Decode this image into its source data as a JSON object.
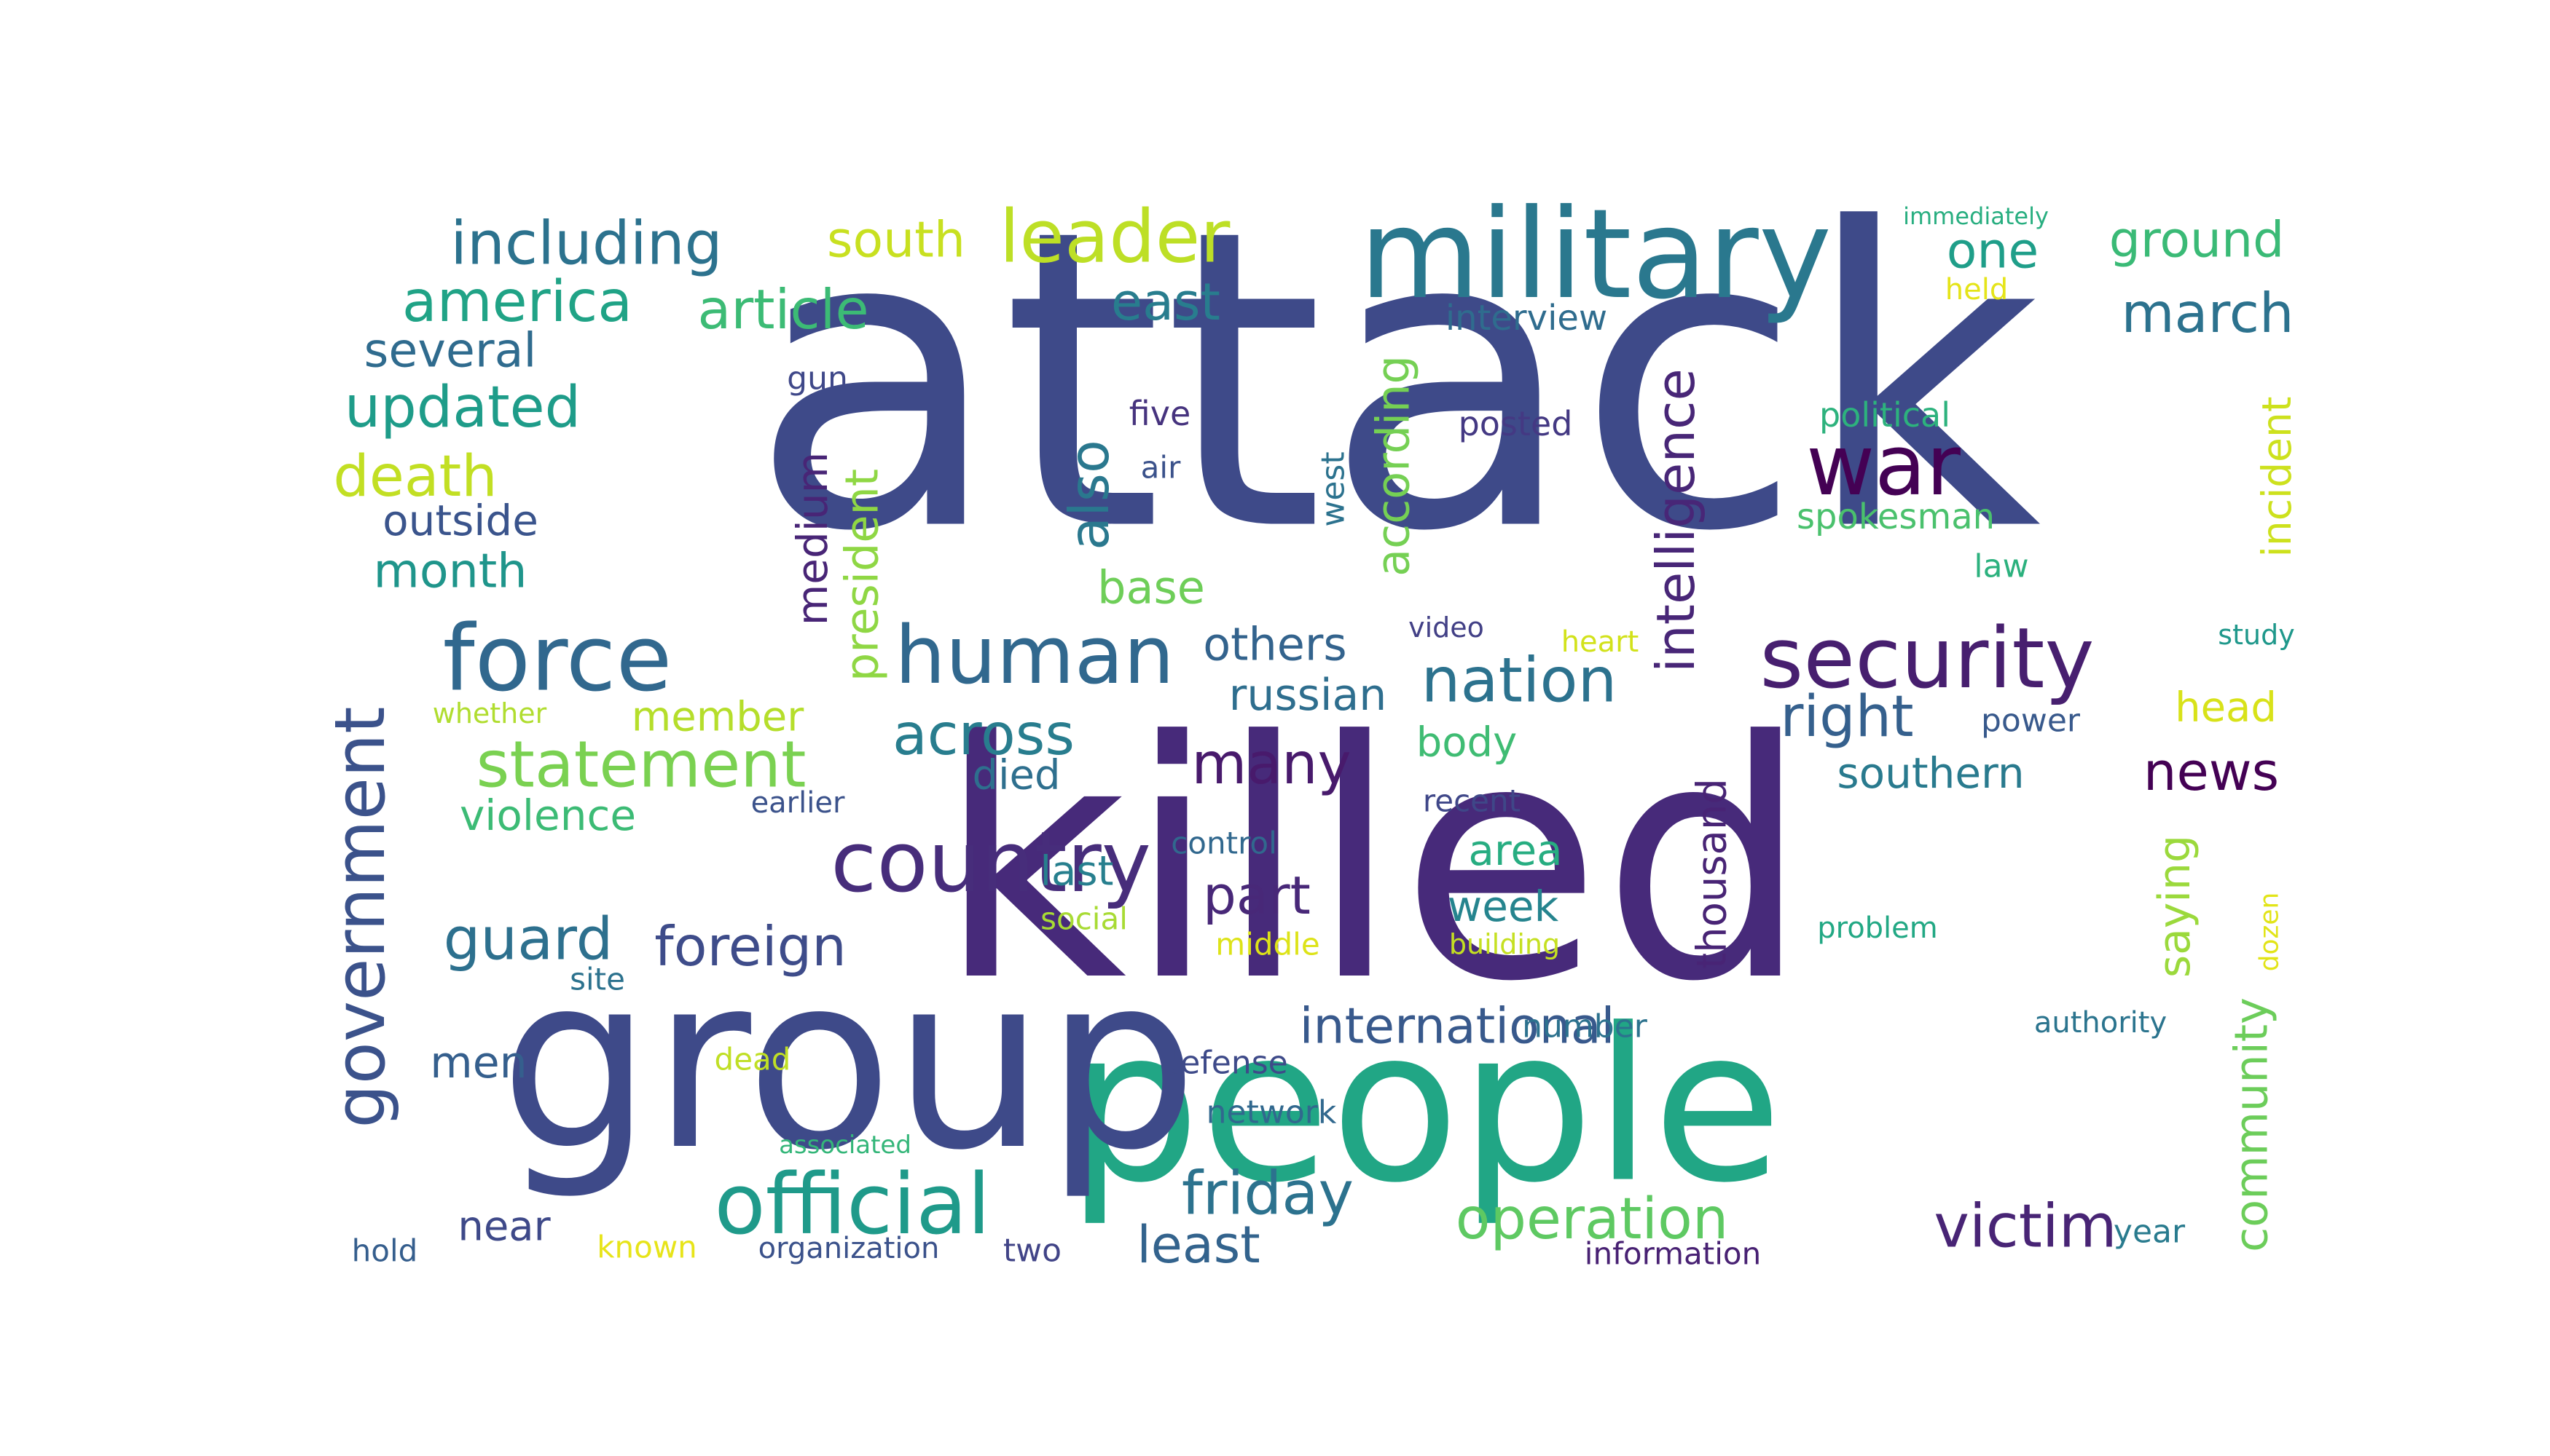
{
  "words": [
    {
      "text": "attack",
      "color": "#3e4a89",
      "rot": 0
    },
    {
      "text": "killed",
      "color": "#472a7a",
      "rot": 0
    },
    {
      "text": "people",
      "color": "#21a685",
      "rot": 0
    },
    {
      "text": "group",
      "color": "#3e4a89",
      "rot": 0
    },
    {
      "text": "military",
      "color": "#2a788e",
      "rot": 0
    },
    {
      "text": "security",
      "color": "#471f6f",
      "rot": 0
    },
    {
      "text": "force",
      "color": "#31688e",
      "rot": 0
    },
    {
      "text": "government",
      "color": "#3b528b",
      "rot": -90
    },
    {
      "text": "country",
      "color": "#472d7b",
      "rot": 0
    },
    {
      "text": "human",
      "color": "#31688e",
      "rot": 0
    },
    {
      "text": "official",
      "color": "#1f9a8a",
      "rot": 0
    },
    {
      "text": "leader",
      "color": "#bddf26",
      "rot": 0
    },
    {
      "text": "war",
      "color": "#440154",
      "rot": 0
    },
    {
      "text": "nation",
      "color": "#2c728e",
      "rot": 0
    },
    {
      "text": "intelligence",
      "color": "#482677",
      "rot": -90
    },
    {
      "text": "including",
      "color": "#2c728e",
      "rot": 0
    },
    {
      "text": "statement",
      "color": "#7ad151",
      "rot": 0
    },
    {
      "text": "america",
      "color": "#20a386",
      "rot": 0
    },
    {
      "text": "updated",
      "color": "#1e9c89",
      "rot": 0
    },
    {
      "text": "article",
      "color": "#3cbb75",
      "rot": 0
    },
    {
      "text": "operation",
      "color": "#5ec962",
      "rot": 0
    },
    {
      "text": "victim",
      "color": "#482475",
      "rot": 0
    },
    {
      "text": "friday",
      "color": "#2c728e",
      "rot": 0
    },
    {
      "text": "across",
      "color": "#287d8e",
      "rot": 0
    },
    {
      "text": "right",
      "color": "#35608d",
      "rot": 0
    },
    {
      "text": "guard",
      "color": "#2d708e",
      "rot": 0
    },
    {
      "text": "foreign",
      "color": "#3e4c8a",
      "rot": 0
    },
    {
      "text": "many",
      "color": "#481a6c",
      "rot": 0
    },
    {
      "text": "also",
      "color": "#2a788e",
      "rot": -90
    },
    {
      "text": "death",
      "color": "#c2df23",
      "rot": 0
    },
    {
      "text": "march",
      "color": "#2c728e",
      "rot": 0
    },
    {
      "text": "international",
      "color": "#38598c",
      "rot": 0
    },
    {
      "text": "community",
      "color": "#6ccd5a",
      "rot": -90
    },
    {
      "text": "news",
      "color": "#440154",
      "rot": 0
    },
    {
      "text": "south",
      "color": "#c8e020",
      "rot": 0
    },
    {
      "text": "east",
      "color": "#287d8e",
      "rot": 0
    },
    {
      "text": "ground",
      "color": "#3aba76",
      "rot": 0
    },
    {
      "text": "one",
      "color": "#1f9e89",
      "rot": 0
    },
    {
      "text": "part",
      "color": "#482878",
      "rot": 0
    },
    {
      "text": "least",
      "color": "#33638d",
      "rot": 0
    },
    {
      "text": "several",
      "color": "#2f6b8e",
      "rot": 0
    },
    {
      "text": "outside",
      "color": "#3a548c",
      "rot": 0
    },
    {
      "text": "month",
      "color": "#1f958b",
      "rot": 0
    },
    {
      "text": "according",
      "color": "#75d054",
      "rot": -90
    },
    {
      "text": "president",
      "color": "#8fd744",
      "rot": -90
    },
    {
      "text": "medium",
      "color": "#482576",
      "rot": -90
    },
    {
      "text": "thousand",
      "color": "#482475",
      "rot": -90
    },
    {
      "text": "incident",
      "color": "#cde11d",
      "rot": -90
    },
    {
      "text": "saying",
      "color": "#9bd93c",
      "rot": -90
    },
    {
      "text": "others",
      "color": "#33638d",
      "rot": 0
    },
    {
      "text": "russian",
      "color": "#2e6e8e",
      "rot": 0
    },
    {
      "text": "southern",
      "color": "#297a8e",
      "rot": 0
    },
    {
      "text": "base",
      "color": "#6ece58",
      "rot": 0
    },
    {
      "text": "member",
      "color": "#b5de2b",
      "rot": 0
    },
    {
      "text": "violence",
      "color": "#3cbb75",
      "rot": 0
    },
    {
      "text": "died",
      "color": "#2e6f8e",
      "rot": 0
    },
    {
      "text": "last",
      "color": "#277f8e",
      "rot": 0
    },
    {
      "text": "area",
      "color": "#27ad81",
      "rot": 0
    },
    {
      "text": "week",
      "color": "#25848e",
      "rot": 0
    },
    {
      "text": "body",
      "color": "#3fbc73",
      "rot": 0
    },
    {
      "text": "head",
      "color": "#d8e219",
      "rot": 0
    },
    {
      "text": "men",
      "color": "#355f8d",
      "rot": 0
    },
    {
      "text": "near",
      "color": "#3e4989",
      "rot": 0
    },
    {
      "text": "interview",
      "color": "#2f6c8e",
      "rot": 0
    },
    {
      "text": "political",
      "color": "#2db27d",
      "rot": 0
    },
    {
      "text": "spokesman",
      "color": "#4ac16d",
      "rot": 0
    },
    {
      "text": "posted",
      "color": "#443983",
      "rot": 0
    },
    {
      "text": "five",
      "color": "#46337e",
      "rot": 0
    },
    {
      "text": "air",
      "color": "#3b528b",
      "rot": 0
    },
    {
      "text": "gun",
      "color": "#3f4889",
      "rot": 0
    },
    {
      "text": "west",
      "color": "#2c728e",
      "rot": -90
    },
    {
      "text": "law",
      "color": "#2cb17e",
      "rot": 0
    },
    {
      "text": "video",
      "color": "#424086",
      "rot": 0
    },
    {
      "text": "heart",
      "color": "#d2e21b",
      "rot": 0
    },
    {
      "text": "study",
      "color": "#1f988b",
      "rot": 0
    },
    {
      "text": "power",
      "color": "#38598c",
      "rot": 0
    },
    {
      "text": "whether",
      "color": "#b0dd2f",
      "rot": 0
    },
    {
      "text": "earlier",
      "color": "#3b528b",
      "rot": 0
    },
    {
      "text": "recent",
      "color": "#3f4788",
      "rot": 0
    },
    {
      "text": "control",
      "color": "#31688e",
      "rot": 0
    },
    {
      "text": "social",
      "color": "#a8db34",
      "rot": 0
    },
    {
      "text": "middle",
      "color": "#dde318",
      "rot": 0
    },
    {
      "text": "building",
      "color": "#c5e021",
      "rot": 0
    },
    {
      "text": "problem",
      "color": "#22a884",
      "rot": 0
    },
    {
      "text": "dozen",
      "color": "#e2e418",
      "rot": -90
    },
    {
      "text": "site",
      "color": "#2c728e",
      "rot": 0
    },
    {
      "text": "number",
      "color": "#2c728e",
      "rot": 0
    },
    {
      "text": "authority",
      "color": "#2b748e",
      "rot": 0
    },
    {
      "text": "dead",
      "color": "#c0df25",
      "rot": 0
    },
    {
      "text": "defense",
      "color": "#3e4a89",
      "rot": 0
    },
    {
      "text": "network",
      "color": "#31688e",
      "rot": 0
    },
    {
      "text": "associated",
      "color": "#34b679",
      "rot": 0
    },
    {
      "text": "hold",
      "color": "#355e8d",
      "rot": 0
    },
    {
      "text": "known",
      "color": "#e7e419",
      "rot": 0
    },
    {
      "text": "organization",
      "color": "#3b528b",
      "rot": 0
    },
    {
      "text": "two",
      "color": "#414487",
      "rot": 0
    },
    {
      "text": "information",
      "color": "#482173",
      "rot": 0
    },
    {
      "text": "year",
      "color": "#297b8e",
      "rot": 0
    },
    {
      "text": "immediately",
      "color": "#28ae80",
      "rot": 0
    },
    {
      "text": "held",
      "color": "#e5e419",
      "rot": 0
    }
  ]
}
